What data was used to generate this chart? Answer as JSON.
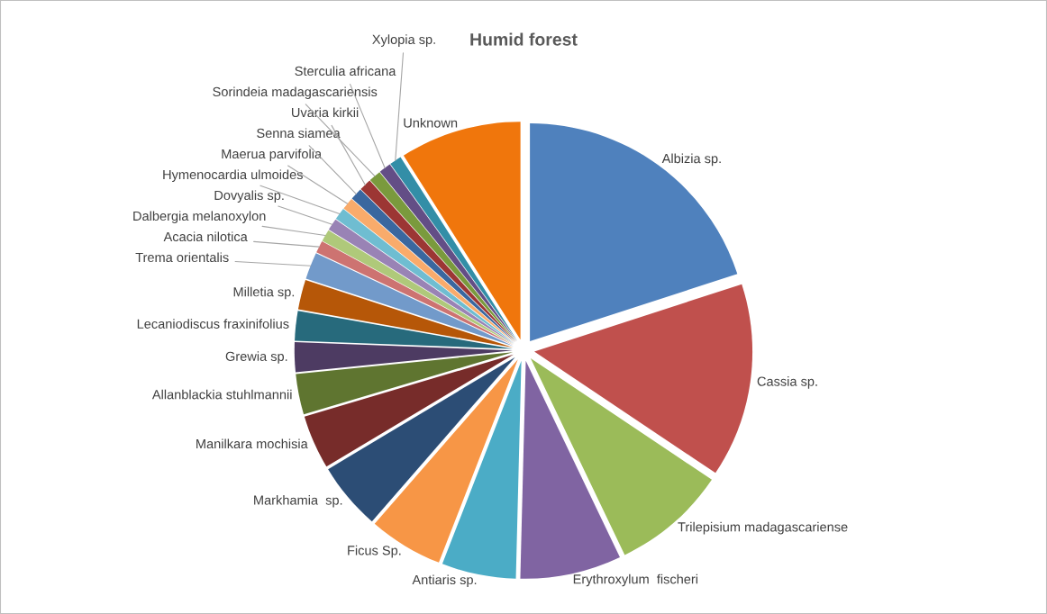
{
  "chart_data": {
    "type": "pie",
    "title": "Humid forest",
    "categories": [
      "Albizia sp.",
      "Cassia sp.",
      "Trilepisium madagascariense",
      "Erythroxylum  fischeri",
      "Antiaris sp.",
      "Ficus Sp.",
      "Markhamia  sp.",
      "Manilkara mochisia",
      "Allanblackia stuhlmannii",
      "Grewia sp.",
      "Lecaniodiscus fraxinifolius",
      "Milletia sp.",
      "Trema orientalis",
      "Acacia nilotica",
      "Dalbergia melanoxylon",
      "Dovyalis sp.",
      "Hymenocardia ulmoides",
      "Maerua parvifolia",
      "Senna siamea",
      "Uvaria kirkii",
      "Sorindeia madagascariensis",
      "Sterculia africana",
      "Xylopia sp.",
      "Unknown"
    ],
    "values": [
      20,
      14.4,
      8.5,
      7.5,
      5.5,
      5.5,
      5,
      4,
      3,
      2.2,
      2.2,
      2.2,
      2,
      0.9,
      0.9,
      0.9,
      0.9,
      0.9,
      0.9,
      0.9,
      0.9,
      0.9,
      0.9,
      9
    ],
    "colors": [
      "#4f81bd",
      "#c0504d",
      "#9bbb59",
      "#8064a2",
      "#4bacc6",
      "#f79646",
      "#2c4d75",
      "#772c2a",
      "#5f7530",
      "#4d3b62",
      "#276a7c",
      "#b65708",
      "#729aca",
      "#cd7371",
      "#afc97a",
      "#9983b5",
      "#6fbdd1",
      "#f9ab6b",
      "#3a679f",
      "#9c3634",
      "#7a9a3d",
      "#634e86",
      "#338ea7",
      "#f0760c"
    ],
    "legend": false
  }
}
